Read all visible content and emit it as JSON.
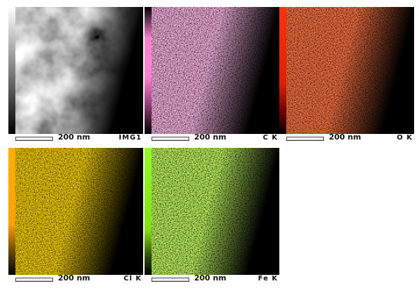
{
  "panels": [
    {
      "label": "IMG1",
      "scale": "200 nm",
      "color": "#ffffff",
      "cbar": "linear-gradient(#fff,#000)"
    },
    {
      "label": "C K",
      "scale": "200 nm",
      "color": "#ff7fd0",
      "cbar": "linear-gradient(#000 0%,#ff80d0 25%,#ff80d0 55%,#a04080 75%,#000 100%)"
    },
    {
      "label": "O K",
      "scale": "200 nm",
      "color": "#ff3010",
      "cbar": "linear-gradient(#ff3010 0%,#e02000 60%,#600000 85%,#000 100%)"
    },
    {
      "label": "Cl K",
      "scale": "200 nm",
      "color": "#ffb000",
      "cbar": "linear-gradient(#ffb000 0%,#ffa000 60%,#705000 80%,#000 100%)"
    },
    {
      "label": "Fe K",
      "scale": "200 nm",
      "color": "#90ff20",
      "cbar": "linear-gradient(#90ff20 0%,#80e010 65%,#305000 85%,#000 100%)"
    }
  ]
}
